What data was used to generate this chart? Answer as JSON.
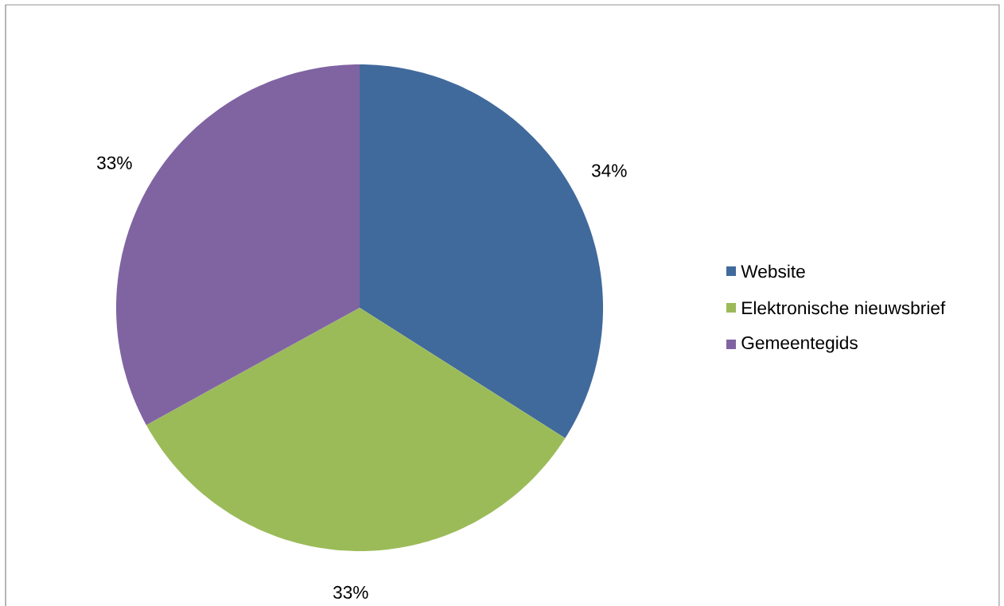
{
  "chart_data": {
    "type": "pie",
    "categories": [
      "Website",
      "Elektronische nieuwsbrief",
      "Gemeentegids"
    ],
    "values": [
      34,
      33,
      33
    ],
    "colors": [
      "#416a9c",
      "#9bbb59",
      "#8064a2"
    ],
    "value_labels": [
      "34%",
      "33%",
      "33%"
    ],
    "legend": "right"
  }
}
